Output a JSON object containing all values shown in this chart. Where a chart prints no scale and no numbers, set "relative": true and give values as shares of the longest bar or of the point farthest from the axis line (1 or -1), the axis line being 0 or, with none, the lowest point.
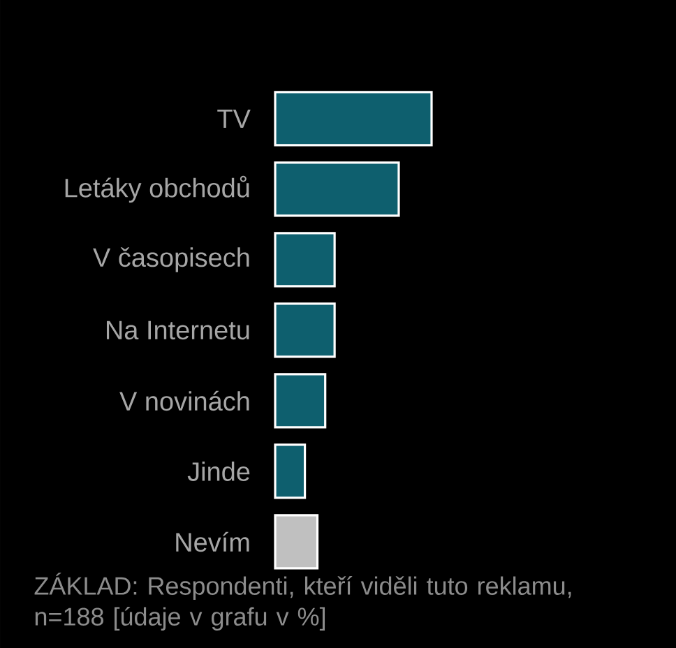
{
  "chart_data": {
    "type": "bar",
    "orientation": "horizontal",
    "relative": true,
    "categories": [
      "TV",
      "Letáky obchodů",
      "V časopisech",
      "Na Internetu",
      "V novinách",
      "Jinde",
      "Nevím"
    ],
    "values": [
      1,
      0.79,
      0.38,
      0.38,
      0.32,
      0.19,
      0.27
    ],
    "colors": [
      "#0e5f6e",
      "#0e5f6e",
      "#0e5f6e",
      "#0e5f6e",
      "#0e5f6e",
      "#0e5f6e",
      "#c0c0c0"
    ],
    "annotations": [
      "ZÁKLAD: Respondenti, kteří viděli tuto reklamu, n=188 [údaje v grafu v %]"
    ]
  }
}
